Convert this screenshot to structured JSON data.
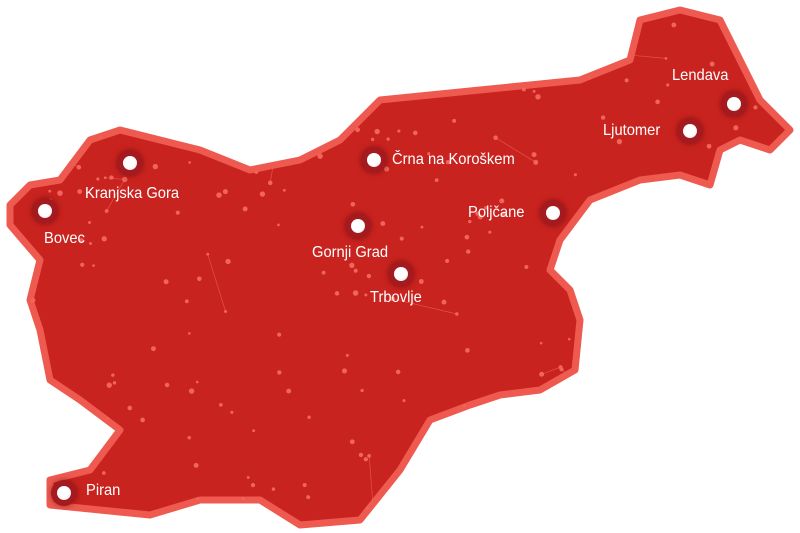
{
  "map": {
    "region": "Slovenia",
    "fill_color": "#c9231f",
    "border_color": "#ee5a4f",
    "network_color": "#f0645a",
    "cities": [
      {
        "id": "bovec",
        "name": "Bovec"
      },
      {
        "id": "kranjska-gora",
        "name": "Kranjska Gora"
      },
      {
        "id": "crna-na-koroskem",
        "name": "Črna na Koroškem"
      },
      {
        "id": "gornji-grad",
        "name": "Gornji Grad"
      },
      {
        "id": "trbovlje",
        "name": "Trbovlje"
      },
      {
        "id": "poljcane",
        "name": "Poljčane"
      },
      {
        "id": "ljutomer",
        "name": "Ljutomer"
      },
      {
        "id": "lendava",
        "name": "Lendava"
      },
      {
        "id": "piran",
        "name": "Piran"
      }
    ]
  }
}
